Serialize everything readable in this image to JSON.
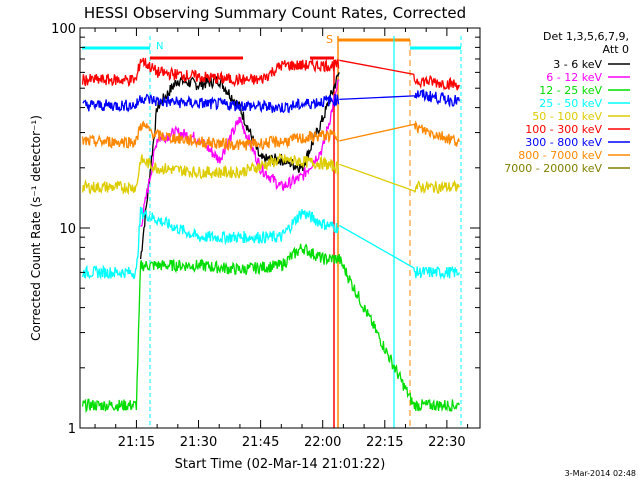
{
  "chart_data": {
    "type": "line",
    "title": "HESSI Observing Summary Count Rates, Corrected",
    "xlabel": "Start Time (02-Mar-14 21:01:22)",
    "ylabel": "Corrected Count Rate (s⁻¹ detector⁻¹)",
    "y_scale": "log",
    "ylim": [
      1,
      100
    ],
    "xlim": [
      "21:01:22",
      "22:38:00"
    ],
    "x_ticks": [
      "21:15",
      "21:30",
      "21:45",
      "22:00",
      "22:15",
      "22:30"
    ],
    "y_ticks": [
      "1",
      "10",
      "100"
    ],
    "grid": false,
    "legend_position": "right",
    "legend_header": [
      "Det 1,3,5,6,7,9,",
      "Att 0"
    ],
    "timestamp": "3-Mar-2014 02:48",
    "series": [
      {
        "name": "3 - 6 keV",
        "color": "#000000",
        "x": [
          "21:16",
          "21:20",
          "21:25",
          "21:30",
          "21:35",
          "21:40",
          "21:45",
          "21:50",
          "21:55",
          "22:00",
          "22:04"
        ],
        "y": [
          7,
          40,
          55,
          52,
          55,
          40,
          22,
          22,
          20,
          35,
          60
        ]
      },
      {
        "name": "6 - 12 keV",
        "color": "#ff00ff",
        "x": [
          "21:16",
          "21:20",
          "21:25",
          "21:30",
          "21:35",
          "21:40",
          "21:45",
          "21:50",
          "21:55",
          "22:00",
          "22:04"
        ],
        "y": [
          10,
          28,
          30,
          28,
          22,
          35,
          20,
          16,
          18,
          25,
          55
        ]
      },
      {
        "name": "12 - 25 keV",
        "color": "#00dd00",
        "x": [
          "21:02",
          "21:15",
          "21:16",
          "21:20",
          "21:30",
          "21:40",
          "21:50",
          "21:55",
          "22:00",
          "22:04",
          "22:22",
          "22:33"
        ],
        "y": [
          1.3,
          1.3,
          6.5,
          6.5,
          6.5,
          6.2,
          6.5,
          8,
          7,
          7,
          1.3,
          1.3
        ]
      },
      {
        "name": "25 - 50 keV",
        "color": "#00ffff",
        "x": [
          "21:02",
          "21:15",
          "21:16",
          "21:20",
          "21:30",
          "21:40",
          "21:50",
          "21:55",
          "22:00",
          "22:04",
          "22:22",
          "22:25",
          "22:33"
        ],
        "y": [
          6,
          6,
          12,
          11,
          9,
          9,
          9,
          12,
          10.5,
          10,
          6,
          6,
          6
        ]
      },
      {
        "name": "50 - 100 keV",
        "color": "#ddcc00",
        "x": [
          "21:02",
          "21:15",
          "21:16",
          "21:20",
          "21:30",
          "21:40",
          "21:50",
          "22:00",
          "22:04",
          "22:22",
          "22:33"
        ],
        "y": [
          16,
          16,
          22,
          20,
          19,
          19,
          22,
          21,
          20,
          16,
          16
        ]
      },
      {
        "name": "100 - 300 keV",
        "color": "#ff0000",
        "x": [
          "21:02",
          "21:15",
          "21:16",
          "21:20",
          "21:30",
          "21:40",
          "21:45",
          "21:50",
          "22:00",
          "22:04",
          "22:22",
          "22:33"
        ],
        "y": [
          55,
          55,
          70,
          60,
          57,
          55,
          55,
          65,
          65,
          65,
          55,
          52
        ]
      },
      {
        "name": "300 - 800 keV",
        "color": "#0000ff",
        "x": [
          "21:02",
          "21:15",
          "21:16",
          "21:20",
          "21:30",
          "21:40",
          "21:50",
          "22:00",
          "22:04",
          "22:22",
          "22:33"
        ],
        "y": [
          41,
          41,
          45,
          43,
          42,
          41,
          40,
          43,
          44,
          47,
          43
        ]
      },
      {
        "name": "800 - 7000 keV",
        "color": "#ff8800",
        "x": [
          "21:02",
          "21:15",
          "21:16",
          "21:20",
          "21:30",
          "21:40",
          "21:50",
          "22:00",
          "22:04",
          "22:22",
          "22:33"
        ],
        "y": [
          27,
          27,
          33,
          29,
          27,
          26,
          27,
          29,
          29,
          32,
          27
        ]
      },
      {
        "name": "7000 - 20000 keV",
        "color": "#808000",
        "x": [],
        "y": []
      }
    ],
    "annotations": [
      {
        "label": "N",
        "color": "#00ffff"
      },
      {
        "label": "S",
        "color": "#ff8800"
      }
    ]
  }
}
